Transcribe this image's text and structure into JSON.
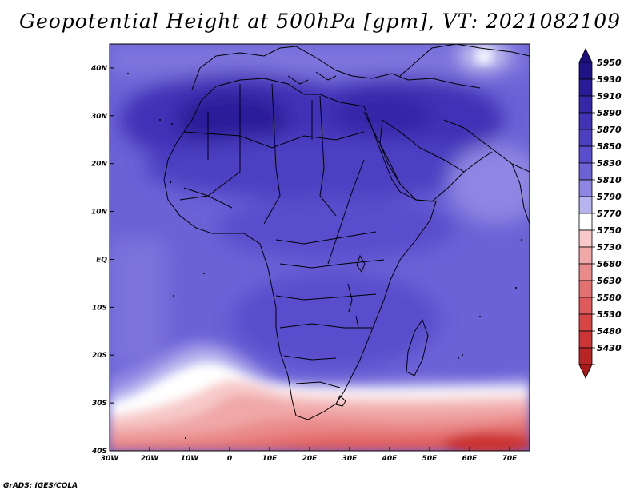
{
  "title": "Geopotential Height at 500hPa [gpm], VT: 2021082109",
  "credit": "GrADS: IGES/COLA",
  "map": {
    "region": "Africa",
    "variable": "Geopotential height",
    "level": "500hPa",
    "units": "gpm",
    "lon_range": [
      -30,
      75
    ],
    "lat_range": [
      -40,
      45
    ],
    "lat_ticks": [
      "40N",
      "30N",
      "20N",
      "10N",
      "EQ",
      "10S",
      "20S",
      "30S",
      "40S"
    ],
    "lon_ticks": [
      "30W",
      "20W",
      "10W",
      "0",
      "10E",
      "20E",
      "30E",
      "40E",
      "50E",
      "60E",
      "70E"
    ]
  },
  "colorbar": {
    "levels": [
      {
        "label": "5950",
        "color": "#1f1287"
      },
      {
        "label": "5930",
        "color": "#2a1c99"
      },
      {
        "label": "5910",
        "color": "#3527a8"
      },
      {
        "label": "5890",
        "color": "#4033b6"
      },
      {
        "label": "5870",
        "color": "#4b3fc2"
      },
      {
        "label": "5850",
        "color": "#584dcc"
      },
      {
        "label": "5830",
        "color": "#6b62d6"
      },
      {
        "label": "5810",
        "color": "#8d86e2"
      },
      {
        "label": "5790",
        "color": "#b7b3ef"
      },
      {
        "label": "5770",
        "color": "#ffffff"
      },
      {
        "label": "5750",
        "color": "#f7c9c9"
      },
      {
        "label": "5730",
        "color": "#f0a7a7"
      },
      {
        "label": "5680",
        "color": "#ea8b8b"
      },
      {
        "label": "5630",
        "color": "#e47171"
      },
      {
        "label": "5580",
        "color": "#df5a5a"
      },
      {
        "label": "5530",
        "color": "#d94545"
      },
      {
        "label": "5480",
        "color": "#cc3535"
      },
      {
        "label": "5430",
        "color": "#b82525"
      }
    ],
    "top_arrow_color": "#1a0e7a",
    "bottom_arrow_color": "#a81b1b"
  }
}
